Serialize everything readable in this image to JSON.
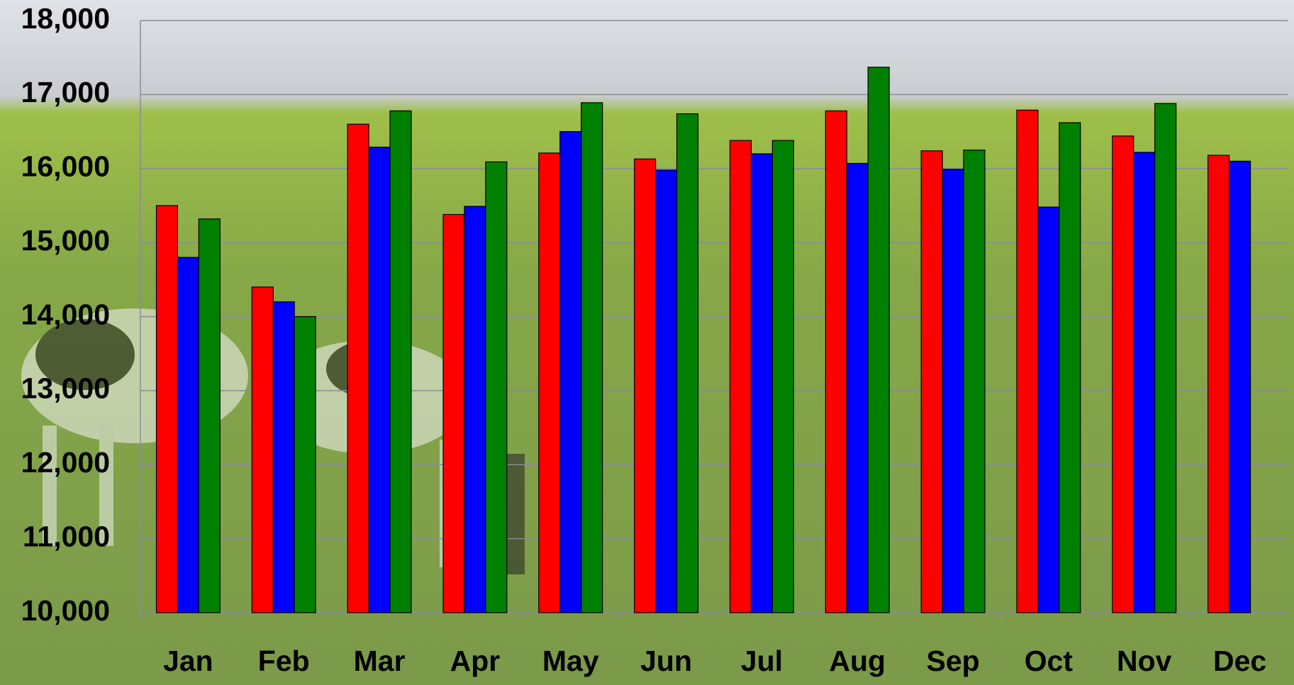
{
  "chart_data": {
    "type": "bar",
    "categories": [
      "Jan",
      "Feb",
      "Mar",
      "Apr",
      "May",
      "Jun",
      "Jul",
      "Aug",
      "Sep",
      "Oct",
      "Nov",
      "Dec"
    ],
    "series": [
      {
        "color": "#ff0000",
        "values": [
          15500,
          14400,
          16600,
          15380,
          16210,
          16130,
          16380,
          16780,
          16240,
          16790,
          16440,
          16180
        ]
      },
      {
        "color": "#0000ff",
        "values": [
          14800,
          14200,
          16290,
          15490,
          16500,
          15980,
          16200,
          16070,
          15990,
          15480,
          16220,
          16100
        ]
      },
      {
        "color": "#008000",
        "values": [
          15320,
          14000,
          16780,
          16090,
          16890,
          16740,
          16380,
          17370,
          16250,
          16620,
          16880,
          null
        ]
      }
    ],
    "ylim": [
      10000,
      18000
    ],
    "yticks": [
      {
        "value": 10000,
        "label": "10,000"
      },
      {
        "value": 11000,
        "label": "11,000"
      },
      {
        "value": 12000,
        "label": "12,000"
      },
      {
        "value": 13000,
        "label": "13,000"
      },
      {
        "value": 14000,
        "label": "14,000"
      },
      {
        "value": 15000,
        "label": "15,000"
      },
      {
        "value": 16000,
        "label": "16,000"
      },
      {
        "value": 17000,
        "label": "17,000"
      },
      {
        "value": 18000,
        "label": "18,000"
      }
    ],
    "grid": true
  }
}
